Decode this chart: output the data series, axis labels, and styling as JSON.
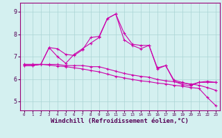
{
  "xlabel": "Windchill (Refroidissement éolien,°C)",
  "x_values": [
    0,
    1,
    2,
    3,
    4,
    5,
    6,
    7,
    8,
    9,
    10,
    11,
    12,
    13,
    14,
    15,
    16,
    17,
    18,
    19,
    20,
    21,
    22,
    23
  ],
  "line1": [
    6.6,
    6.6,
    6.65,
    7.4,
    7.35,
    7.1,
    7.05,
    7.3,
    7.85,
    7.9,
    8.7,
    8.9,
    8.05,
    7.55,
    7.5,
    7.5,
    6.45,
    6.6,
    5.95,
    5.85,
    5.75,
    5.85,
    5.9,
    5.85
  ],
  "line2": [
    6.6,
    6.6,
    6.65,
    7.4,
    7.0,
    6.7,
    7.1,
    7.35,
    7.6,
    7.85,
    8.7,
    8.9,
    7.75,
    7.5,
    7.35,
    7.5,
    6.5,
    6.6,
    5.9,
    5.75,
    5.7,
    5.85,
    5.85,
    5.85
  ],
  "line3": [
    6.65,
    6.65,
    6.65,
    6.65,
    6.65,
    6.6,
    6.6,
    6.6,
    6.55,
    6.55,
    6.45,
    6.35,
    6.25,
    6.18,
    6.12,
    6.08,
    5.98,
    5.92,
    5.88,
    5.82,
    5.78,
    5.72,
    5.62,
    5.5
  ],
  "line4": [
    6.65,
    6.65,
    6.65,
    6.62,
    6.58,
    6.55,
    6.5,
    6.45,
    6.38,
    6.32,
    6.22,
    6.12,
    6.05,
    5.98,
    5.92,
    5.88,
    5.82,
    5.78,
    5.72,
    5.68,
    5.62,
    5.58,
    5.18,
    4.82
  ],
  "color": "#cc00aa",
  "bg_color": "#d4f0f0",
  "grid_color": "#aad4d4",
  "ylim": [
    4.6,
    9.4
  ],
  "yticks": [
    5,
    6,
    7,
    8,
    9
  ],
  "xticks": [
    0,
    1,
    2,
    3,
    4,
    5,
    6,
    7,
    8,
    9,
    10,
    11,
    12,
    13,
    14,
    15,
    16,
    17,
    18,
    19,
    20,
    21,
    22,
    23
  ],
  "marker": "+",
  "markersize": 3,
  "linewidth": 0.8
}
